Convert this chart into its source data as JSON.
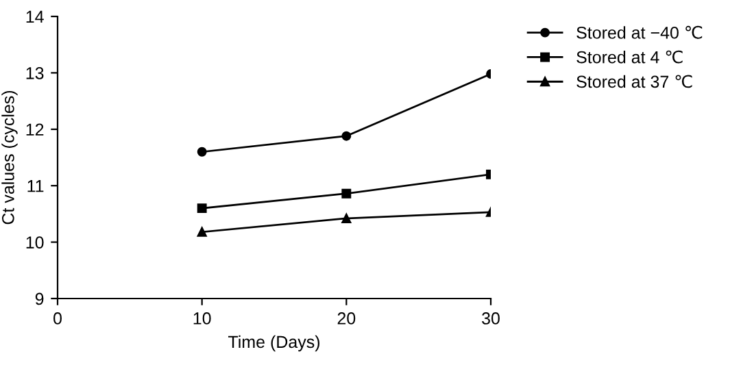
{
  "chart_data": {
    "type": "line",
    "xlabel": "Time (Days)",
    "ylabel": "Ct values (cycles)",
    "x": [
      10,
      20,
      30
    ],
    "series": [
      {
        "name": "Stored at −40 ℃",
        "color": "#000000",
        "marker": "circle",
        "values": [
          11.6,
          11.88,
          12.98
        ]
      },
      {
        "name": "Stored at 4 ℃",
        "color": "#000000",
        "marker": "square",
        "values": [
          10.6,
          10.86,
          11.2
        ]
      },
      {
        "name": "Stored at 37 ℃",
        "color": "#000000",
        "marker": "triangle",
        "values": [
          10.18,
          10.42,
          10.53
        ]
      }
    ],
    "xlim": [
      0,
      30
    ],
    "xticks": [
      0,
      10,
      20,
      30
    ],
    "ylim": [
      9,
      14
    ],
    "yticks": [
      9,
      10,
      11,
      12,
      13,
      14
    ],
    "grid": false,
    "legend": "right",
    "line_style": "solid"
  }
}
